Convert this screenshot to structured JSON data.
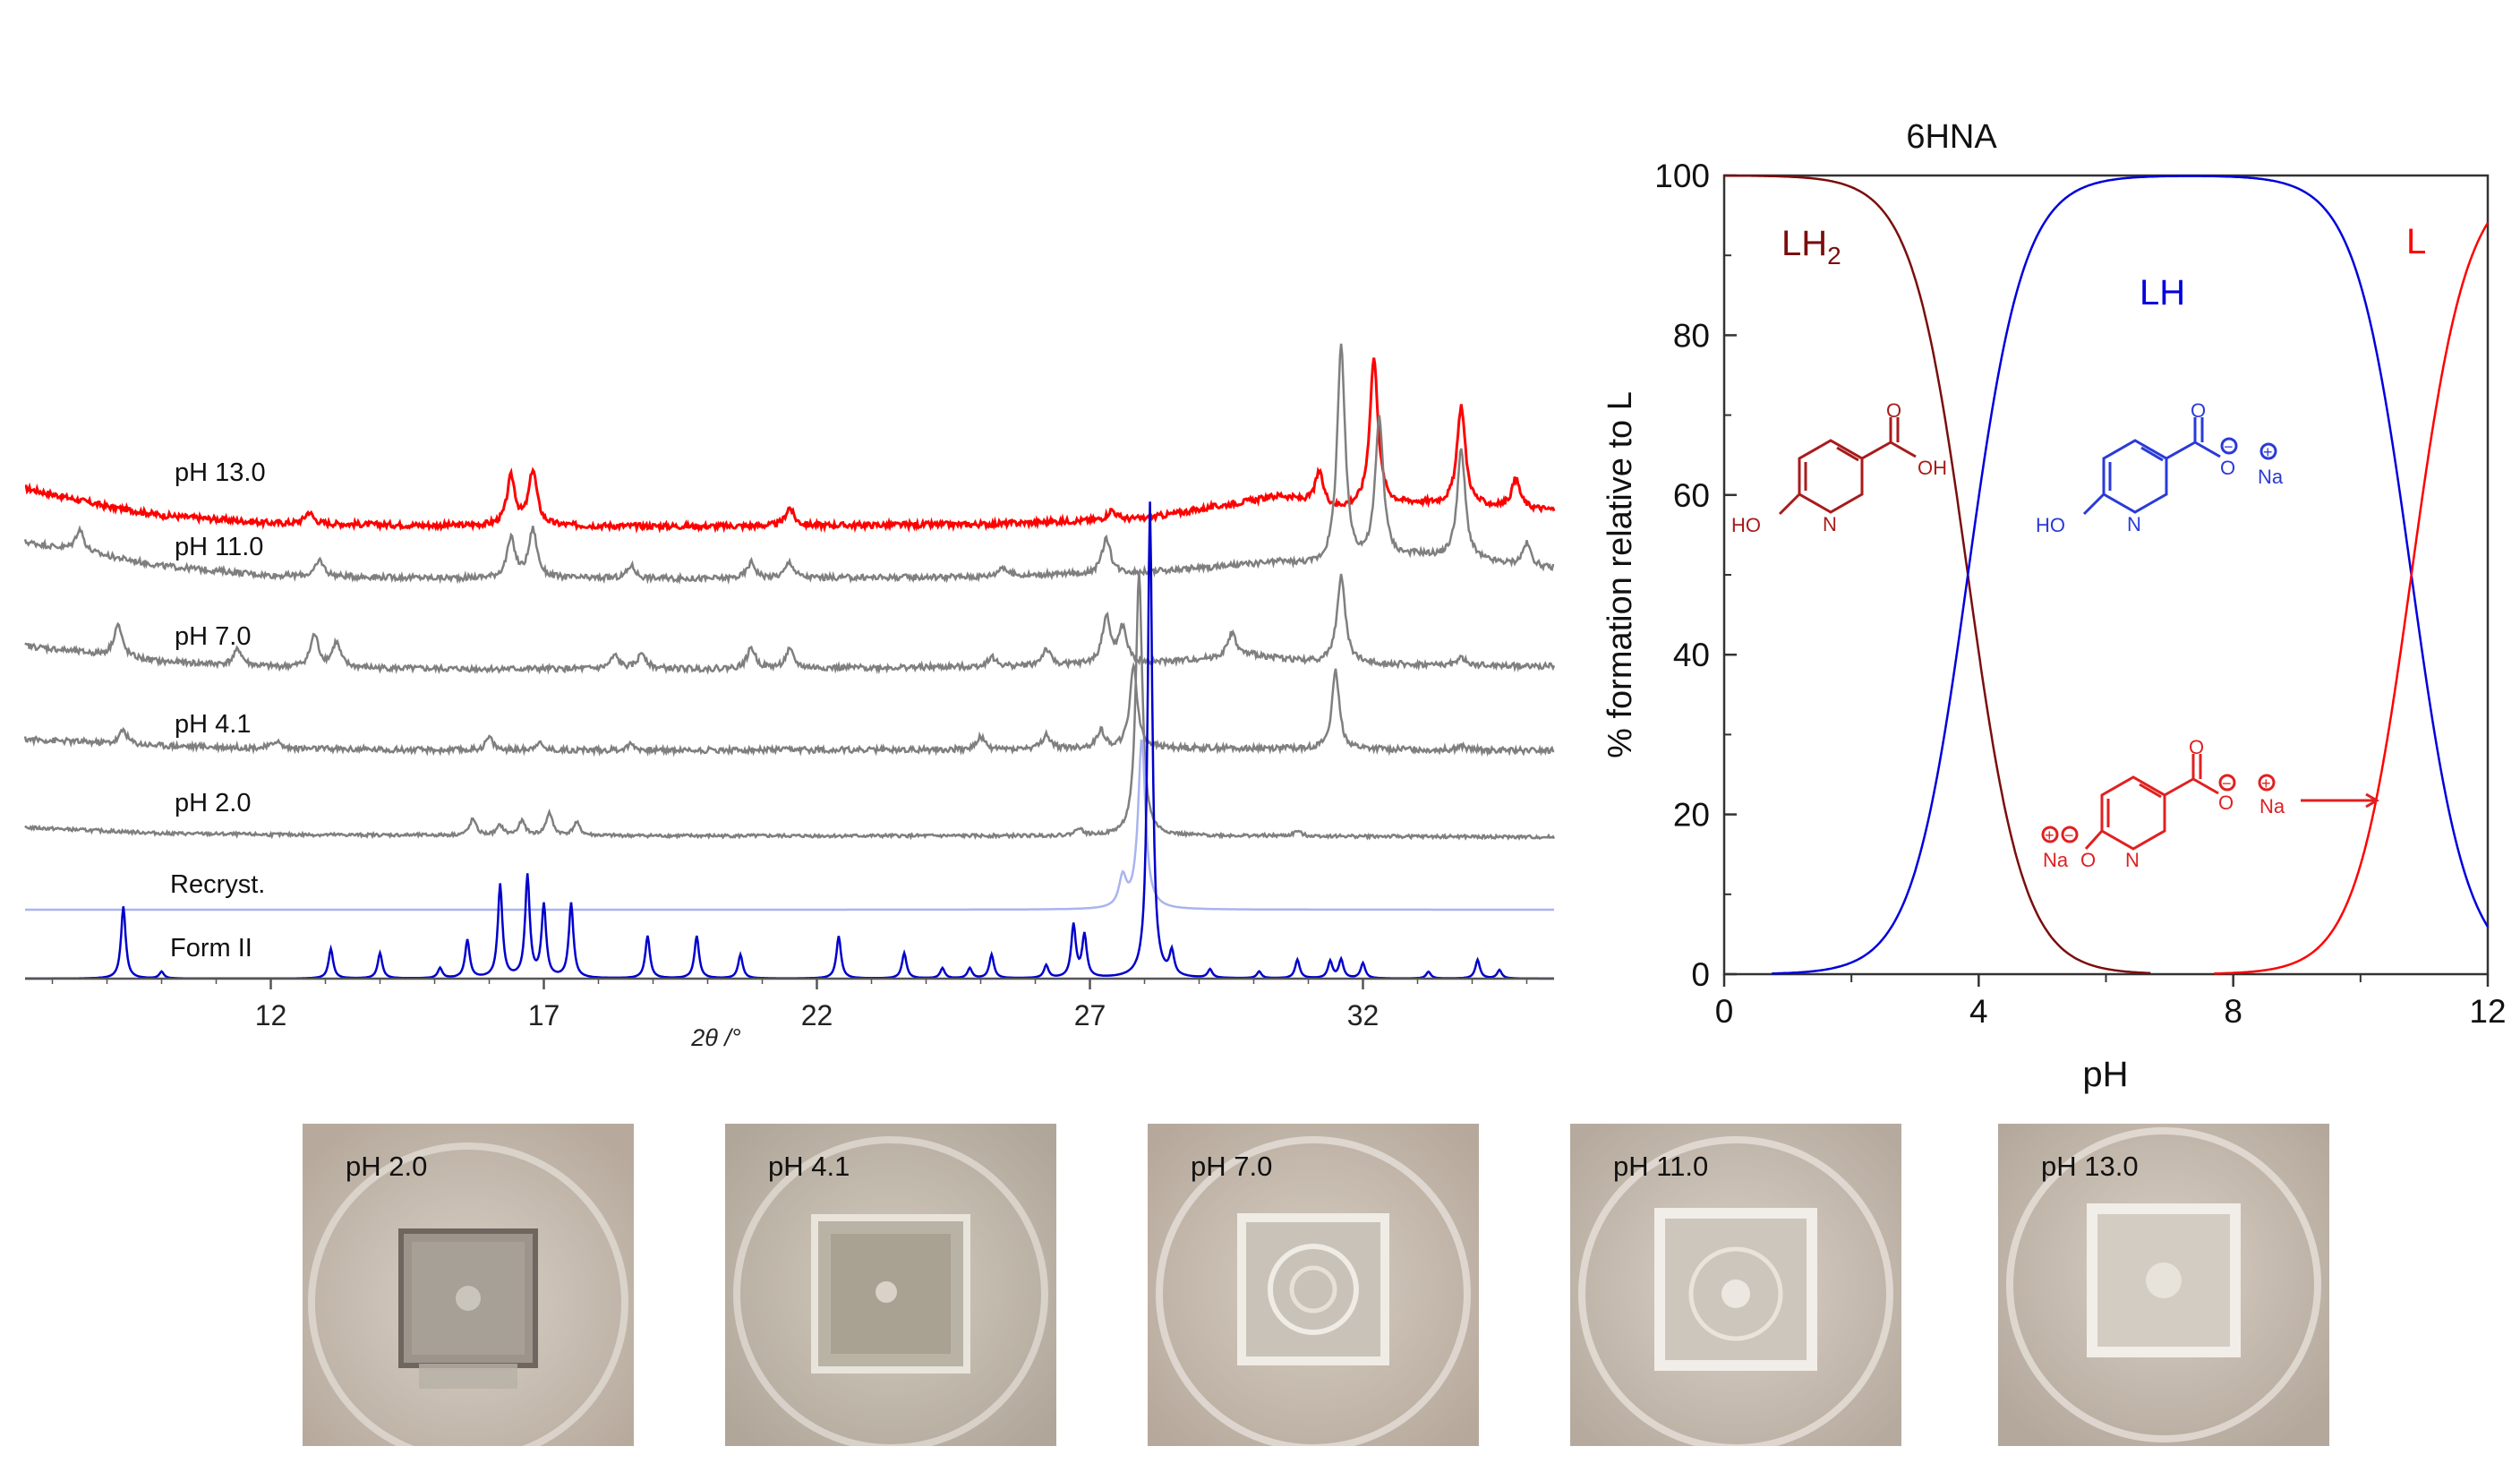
{
  "pxrd": {
    "chart_data": {
      "type": "line",
      "xlabel": "2θ /°",
      "xlim": [
        7.5,
        35.5
      ],
      "x_ticks": [
        "12",
        "17",
        "22",
        "27",
        "32"
      ],
      "x_tick_values": [
        12,
        17,
        22,
        27,
        32
      ],
      "y_axis": "stacked intensity (arbitrary units, offset traces)",
      "series": [
        {
          "name": "pH 13.0",
          "label": "pH 13.0",
          "color": "#ff0000",
          "baseline": [
            [
              7.5,
              0.62
            ],
            [
              9,
              0.34
            ],
            [
              10,
              0.2
            ],
            [
              12,
              0.08
            ],
            [
              15,
              0.04
            ],
            [
              20,
              0.03
            ],
            [
              25,
              0.06
            ],
            [
              28,
              0.15
            ],
            [
              30.5,
              0.5
            ],
            [
              31.5,
              0.3
            ],
            [
              33,
              0.38
            ],
            [
              35.5,
              0.28
            ]
          ],
          "peaks": [
            [
              12.7,
              0.18
            ],
            [
              16.4,
              0.75
            ],
            [
              16.8,
              0.85
            ],
            [
              21.5,
              0.28
            ],
            [
              27.4,
              0.15
            ],
            [
              31.2,
              0.5
            ],
            [
              32.2,
              2.3
            ],
            [
              33.8,
              1.55
            ],
            [
              34.8,
              0.45
            ]
          ]
        },
        {
          "name": "pH 11.0",
          "label": "pH 11.0",
          "color": "#7f7f7f",
          "baseline": [
            [
              7.5,
              0.62
            ],
            [
              9,
              0.4
            ],
            [
              10,
              0.25
            ],
            [
              12,
              0.1
            ],
            [
              15,
              0.06
            ],
            [
              20,
              0.05
            ],
            [
              25,
              0.08
            ],
            [
              28,
              0.15
            ],
            [
              30.5,
              0.3
            ],
            [
              31.5,
              0.2
            ],
            [
              33,
              0.4
            ],
            [
              35.5,
              0.2
            ]
          ],
          "peaks": [
            [
              8.5,
              0.35
            ],
            [
              12.9,
              0.25
            ],
            [
              16.4,
              0.6
            ],
            [
              16.8,
              0.75
            ],
            [
              18.6,
              0.2
            ],
            [
              20.8,
              0.25
            ],
            [
              21.5,
              0.25
            ],
            [
              25.4,
              0.15
            ],
            [
              27.3,
              0.55
            ],
            [
              31.6,
              3.4
            ],
            [
              32.3,
              2.2
            ],
            [
              33.8,
              1.7
            ],
            [
              35.0,
              0.35
            ]
          ]
        },
        {
          "name": "pH 7.0",
          "label": "pH 7.0",
          "color": "#7f7f7f",
          "baseline": [
            [
              7.5,
              0.4
            ],
            [
              9,
              0.25
            ],
            [
              10,
              0.15
            ],
            [
              12,
              0.07
            ],
            [
              15,
              0.04
            ],
            [
              20,
              0.04
            ],
            [
              25,
              0.07
            ],
            [
              28,
              0.12
            ],
            [
              30,
              0.25
            ],
            [
              31,
              0.15
            ],
            [
              33,
              0.1
            ],
            [
              35.5,
              0.08
            ]
          ],
          "peaks": [
            [
              9.2,
              0.5
            ],
            [
              11.4,
              0.25
            ],
            [
              12.8,
              0.5
            ],
            [
              13.2,
              0.38
            ],
            [
              18.3,
              0.2
            ],
            [
              18.8,
              0.25
            ],
            [
              20.8,
              0.32
            ],
            [
              21.5,
              0.28
            ],
            [
              25.2,
              0.15
            ],
            [
              26.2,
              0.25
            ],
            [
              27.3,
              0.72
            ],
            [
              27.6,
              0.55
            ],
            [
              29.6,
              0.38
            ],
            [
              31.6,
              1.35
            ],
            [
              33.8,
              0.12
            ]
          ]
        },
        {
          "name": "pH 4.1",
          "label": "pH 4.1",
          "color": "#7f7f7f",
          "baseline": [
            [
              7.5,
              0.2
            ],
            [
              10,
              0.1
            ],
            [
              12,
              0.06
            ],
            [
              15,
              0.03
            ],
            [
              20,
              0.03
            ],
            [
              25,
              0.04
            ],
            [
              27,
              0.06
            ],
            [
              30,
              0.06
            ],
            [
              35.5,
              0.02
            ]
          ],
          "peaks": [
            [
              9.3,
              0.22
            ],
            [
              12.1,
              0.12
            ],
            [
              16.0,
              0.2
            ],
            [
              16.9,
              0.12
            ],
            [
              18.6,
              0.1
            ],
            [
              25.0,
              0.2
            ],
            [
              26.2,
              0.22
            ],
            [
              27.2,
              0.28
            ],
            [
              27.8,
              1.3
            ],
            [
              31.5,
              1.2
            ],
            [
              33.8,
              0.06
            ]
          ]
        },
        {
          "name": "pH 2.0",
          "label": "pH 2.0",
          "color": "#7f7f7f",
          "baseline": [
            [
              7.5,
              0.15
            ],
            [
              10,
              0.06
            ],
            [
              12,
              0.04
            ],
            [
              15,
              0.03
            ],
            [
              20,
              0.02
            ],
            [
              25,
              0.02
            ],
            [
              30,
              0.02
            ],
            [
              35.5,
              0.0
            ]
          ],
          "peaks": [
            [
              15.7,
              0.25
            ],
            [
              16.2,
              0.15
            ],
            [
              16.6,
              0.22
            ],
            [
              17.1,
              0.35
            ],
            [
              17.6,
              0.2
            ],
            [
              26.8,
              0.12
            ],
            [
              27.9,
              4.1
            ],
            [
              30.8,
              0.08
            ]
          ]
        },
        {
          "name": "Recryst.",
          "label": "Recryst.",
          "color": "#a9b4ef",
          "baseline": [
            [
              7.5,
              0.0
            ],
            [
              35.5,
              0.0
            ]
          ],
          "peaks": [
            [
              27.6,
              0.35
            ],
            [
              27.95,
              2.0
            ]
          ]
        },
        {
          "name": "Form II",
          "label": "Form II",
          "color": "#0000cc",
          "baseline": [
            [
              7.5,
              0.0
            ],
            [
              35.5,
              0.0
            ]
          ],
          "peaks": [
            [
              9.3,
              0.85
            ],
            [
              10.0,
              0.08
            ],
            [
              13.1,
              0.35
            ],
            [
              14.0,
              0.3
            ],
            [
              15.1,
              0.12
            ],
            [
              15.6,
              0.45
            ],
            [
              16.2,
              1.1
            ],
            [
              16.7,
              1.2
            ],
            [
              17.0,
              0.85
            ],
            [
              17.5,
              0.88
            ],
            [
              18.9,
              0.5
            ],
            [
              19.8,
              0.5
            ],
            [
              20.6,
              0.28
            ],
            [
              22.4,
              0.5
            ],
            [
              23.6,
              0.3
            ],
            [
              24.3,
              0.12
            ],
            [
              24.8,
              0.12
            ],
            [
              25.2,
              0.28
            ],
            [
              26.2,
              0.15
            ],
            [
              26.7,
              0.62
            ],
            [
              26.9,
              0.5
            ],
            [
              28.1,
              5.6
            ],
            [
              28.5,
              0.28
            ],
            [
              29.2,
              0.1
            ],
            [
              30.1,
              0.08
            ],
            [
              30.8,
              0.22
            ],
            [
              31.4,
              0.2
            ],
            [
              31.6,
              0.22
            ],
            [
              32.0,
              0.18
            ],
            [
              33.2,
              0.08
            ],
            [
              34.1,
              0.22
            ],
            [
              34.5,
              0.1
            ]
          ]
        }
      ]
    }
  },
  "speciation": {
    "chart_data": {
      "type": "line",
      "title": "6HNA",
      "xlabel": "pH",
      "ylabel": "% formation relative to L",
      "xlim": [
        0,
        12
      ],
      "ylim": [
        0,
        100
      ],
      "x_ticks": [
        "0",
        "4",
        "8",
        "12"
      ],
      "x_tick_values": [
        0,
        4,
        8,
        12
      ],
      "y_ticks": [
        "0",
        "20",
        "40",
        "60",
        "80",
        "100"
      ],
      "y_tick_values": [
        0,
        20,
        40,
        60,
        80,
        100
      ],
      "pKa1": 3.83,
      "pKa2": 10.8,
      "series": [
        {
          "name": "LH2",
          "label": "LH",
          "subscript": "2",
          "color": "#7b0d0d",
          "x_range": [
            0,
            6.7
          ]
        },
        {
          "name": "LH",
          "label": "LH",
          "color": "#0000dd",
          "x_range": [
            0.75,
            12
          ]
        },
        {
          "name": "L",
          "label": "L",
          "color": "#ff0000",
          "x_range": [
            7.7,
            12
          ]
        }
      ],
      "structures": {
        "lh2": {
          "labels": [
            "O",
            "OH",
            "HO",
            "N"
          ],
          "color": "#a81b1b"
        },
        "lh": {
          "labels": [
            "O",
            "O",
            "Na",
            "HO",
            "N"
          ],
          "charges": [
            "−",
            "+"
          ],
          "color": "#2a3ad8"
        },
        "l": {
          "labels": [
            "O",
            "O",
            "Na",
            "Na",
            "O",
            "N"
          ],
          "charges": [
            "−",
            "+",
            "+",
            "−"
          ],
          "color": "#e02020"
        }
      }
    }
  },
  "photos": [
    {
      "label": "pH 2.0"
    },
    {
      "label": "pH 4.1"
    },
    {
      "label": "pH 7.0"
    },
    {
      "label": "pH 11.0"
    },
    {
      "label": "pH 13.0"
    }
  ]
}
